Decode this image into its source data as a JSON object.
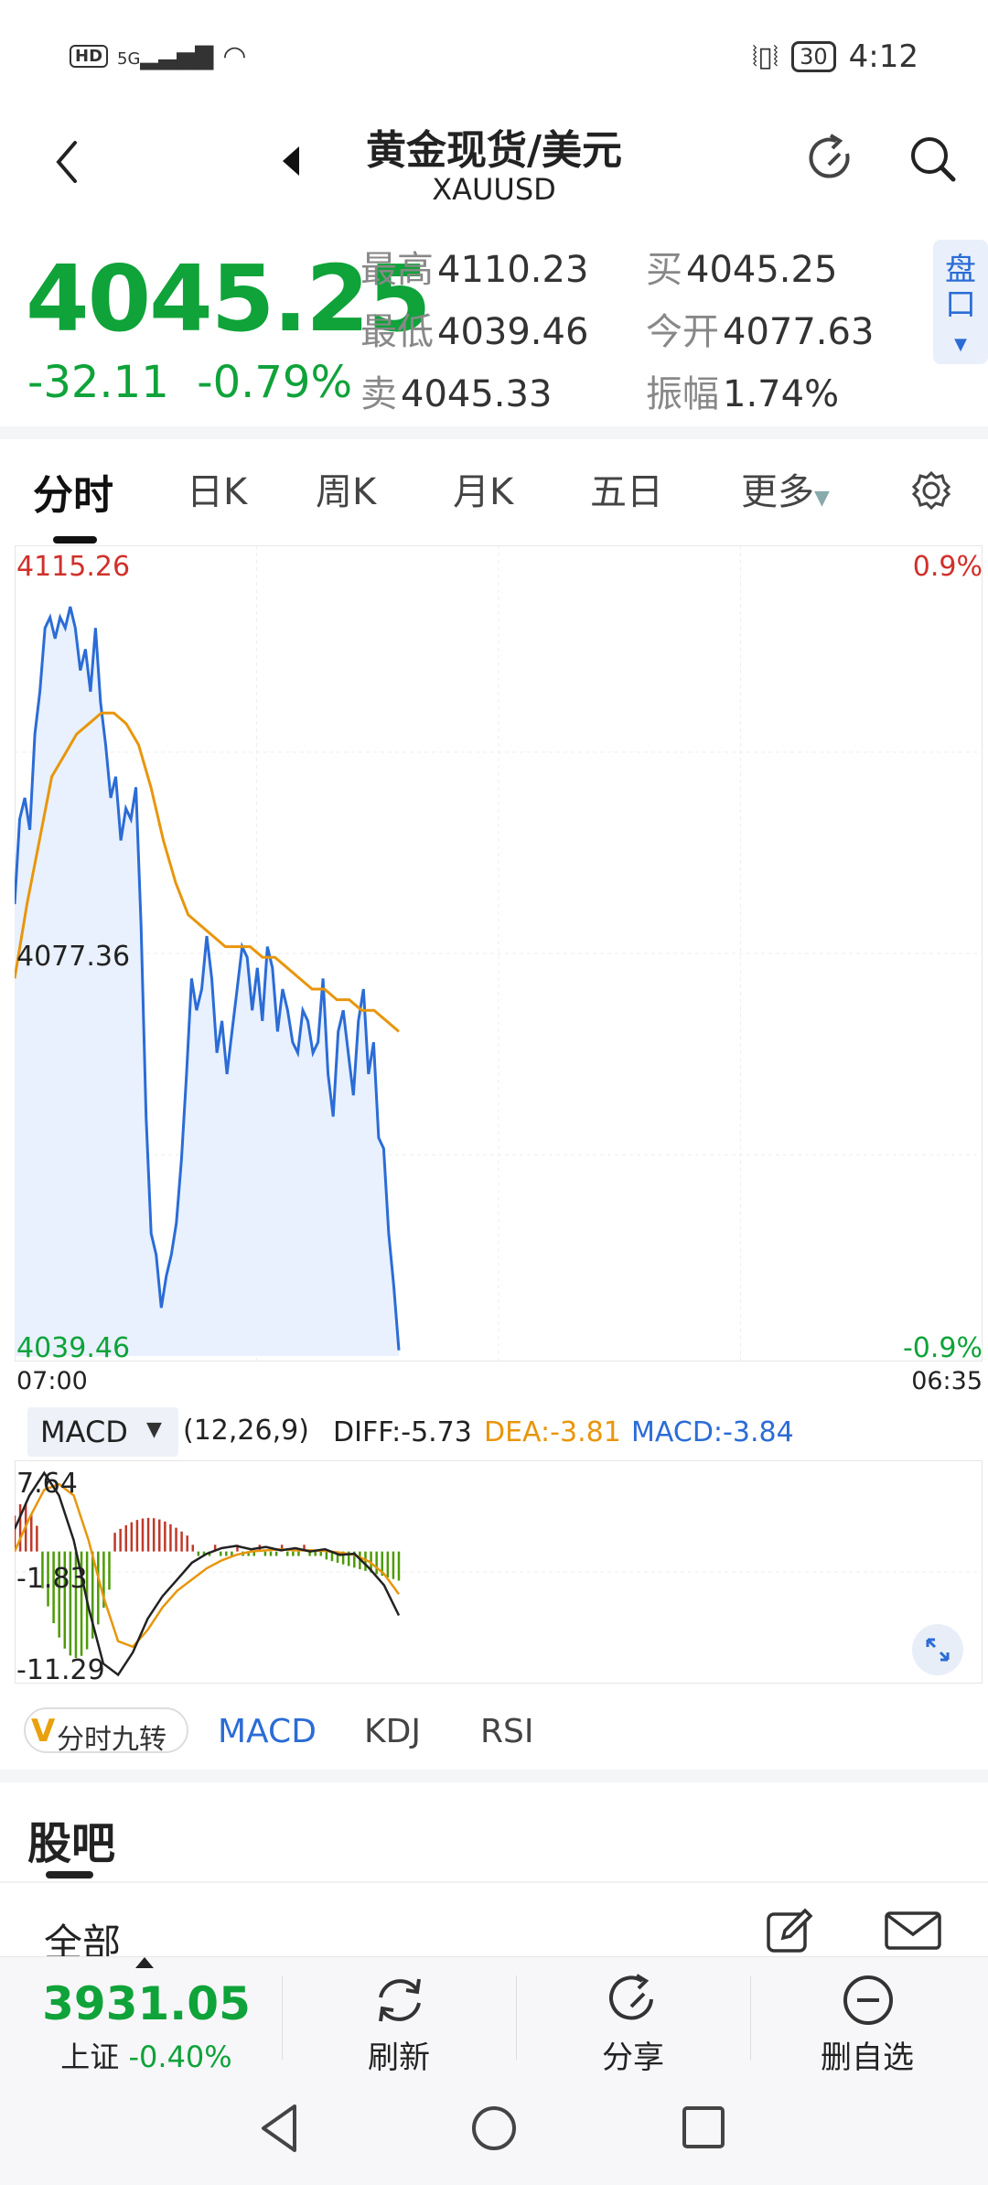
{
  "status_bar": {
    "network": "HD",
    "signal": "5G",
    "battery": "30",
    "time": "4:12"
  },
  "header": {
    "title": "黄金现货/美元",
    "symbol": "XAUUSD"
  },
  "quote": {
    "price": "4045.25",
    "change": "-32.11",
    "change_pct": "-0.79%",
    "high_label": "最高",
    "high": "4110.23",
    "low_label": "最低",
    "low": "4039.46",
    "sell_label": "卖",
    "sell": "4045.33",
    "buy_label": "买",
    "buy": "4045.25",
    "open_label": "今开",
    "open": "4077.63",
    "amp_label": "振幅",
    "amp": "1.74%",
    "pankou": "盘口"
  },
  "tabs": [
    "分时",
    "日K",
    "周K",
    "月K",
    "五日",
    "更多"
  ],
  "chart_data": {
    "type": "line",
    "y_top": "4115.26",
    "y_mid": "4077.36",
    "y_bottom": "4039.46",
    "pct_top": "0.9%",
    "pct_bottom": "-0.9%",
    "time_start": "07:00",
    "time_end": "06:35",
    "ylim": [
      4039.46,
      4115.26
    ],
    "price": [
      4082,
      4090,
      4092,
      4089,
      4098,
      4102,
      4108,
      4109,
      4107,
      4109,
      4108,
      4110,
      4108,
      4104,
      4106,
      4102,
      4108,
      4101,
      4097,
      4092,
      4094,
      4088,
      4091,
      4090,
      4093,
      4080,
      4062,
      4051,
      4049,
      4044,
      4047,
      4049,
      4052,
      4058,
      4066,
      4075,
      4072,
      4074,
      4079,
      4075,
      4068,
      4071,
      4066,
      4070,
      4074,
      4078,
      4077,
      4072,
      4076,
      4071,
      4078,
      4076,
      4070,
      4074,
      4072,
      4069,
      4068,
      4072,
      4071,
      4068,
      4069,
      4075,
      4066,
      4062,
      4070,
      4072,
      4068,
      4064,
      4071,
      4074,
      4066,
      4069,
      4060,
      4059,
      4051,
      4046,
      4040
    ],
    "average": [
      4075,
      4082,
      4088,
      4094,
      4096,
      4098,
      4099,
      4100,
      4100,
      4099,
      4097,
      4093,
      4088,
      4084,
      4081,
      4080,
      4079,
      4078,
      4078,
      4078,
      4077,
      4077,
      4076,
      4075,
      4074,
      4074,
      4073,
      4073,
      4072,
      4072,
      4071,
      4070
    ]
  },
  "macd": {
    "name": "MACD",
    "params": "(12,26,9)",
    "diff": "DIFF:-5.73",
    "dea": "DEA:-3.81",
    "macd": "MACD:-3.84",
    "y_top": "7.64",
    "y_mid": "-1.83",
    "y_bottom": "-11.29",
    "ylim": [
      -11.29,
      7.64
    ],
    "colors": {
      "diff": "#222222",
      "dea": "#e8960c",
      "macd_label": "#2b6cd6",
      "pos": "#c0392b",
      "neg": "#4e9a06"
    }
  },
  "indicator_tabs": {
    "v": "V",
    "nine": "分时九转",
    "items": [
      "MACD",
      "KDJ",
      "RSI"
    ]
  },
  "guba": {
    "title": "股吧",
    "filter": "全部"
  },
  "bottom_bar": {
    "index_value": "3931.05",
    "index_name": "上证",
    "index_pct": "-0.40%",
    "refresh": "刷新",
    "share": "分享",
    "remove": "删自选"
  },
  "colors": {
    "up": "#d0302b",
    "down": "#0fa33a",
    "line": "#2b6cd6",
    "avg": "#e8960c",
    "fill": "#e8f1fd"
  }
}
